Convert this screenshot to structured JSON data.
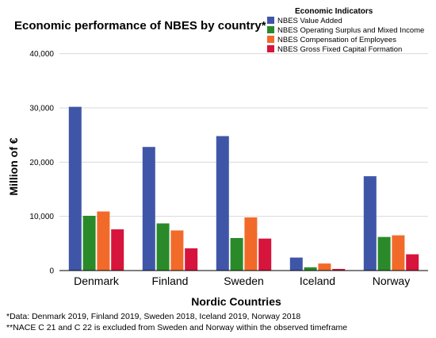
{
  "chart_data": {
    "type": "bar",
    "title": "Economic performance of NBES by country*",
    "xlabel": "Nordic Countries",
    "ylabel": "Million of €",
    "categories": [
      "Denmark",
      "Finland",
      "Sweden",
      "Iceland",
      "Norway"
    ],
    "yticks": [
      "0",
      "10,000",
      "20,000",
      "30,000",
      "40,000"
    ],
    "ylim": [
      0,
      42000
    ],
    "grid": "horizontal",
    "legend_title": "Economic Indicators",
    "legend_position": "top-right",
    "series": [
      {
        "name": "NBES Value Added",
        "color": "#3f56a8",
        "values": [
          30200,
          22800,
          24800,
          2400,
          17400
        ]
      },
      {
        "name": "NBES Operating Surplus and Mixed Income",
        "color": "#2a8a2a",
        "values": [
          10100,
          8700,
          6000,
          600,
          6200
        ]
      },
      {
        "name": "NBES Compensation of Employees",
        "color": "#f26a2a",
        "values": [
          10900,
          7400,
          9800,
          1300,
          6500
        ]
      },
      {
        "name": "NBES Gross Fixed Capital Formation",
        "color": "#d6143c",
        "values": [
          7600,
          4100,
          5900,
          300,
          3000
        ]
      }
    ],
    "footnotes": [
      "*Data: Denmark 2019, Finland 2019, Sweden 2018, Iceland 2019, Norway 2018",
      "**NACE C 21 and C 22 is excluded from Sweden and Norway within the observed timeframe"
    ]
  }
}
